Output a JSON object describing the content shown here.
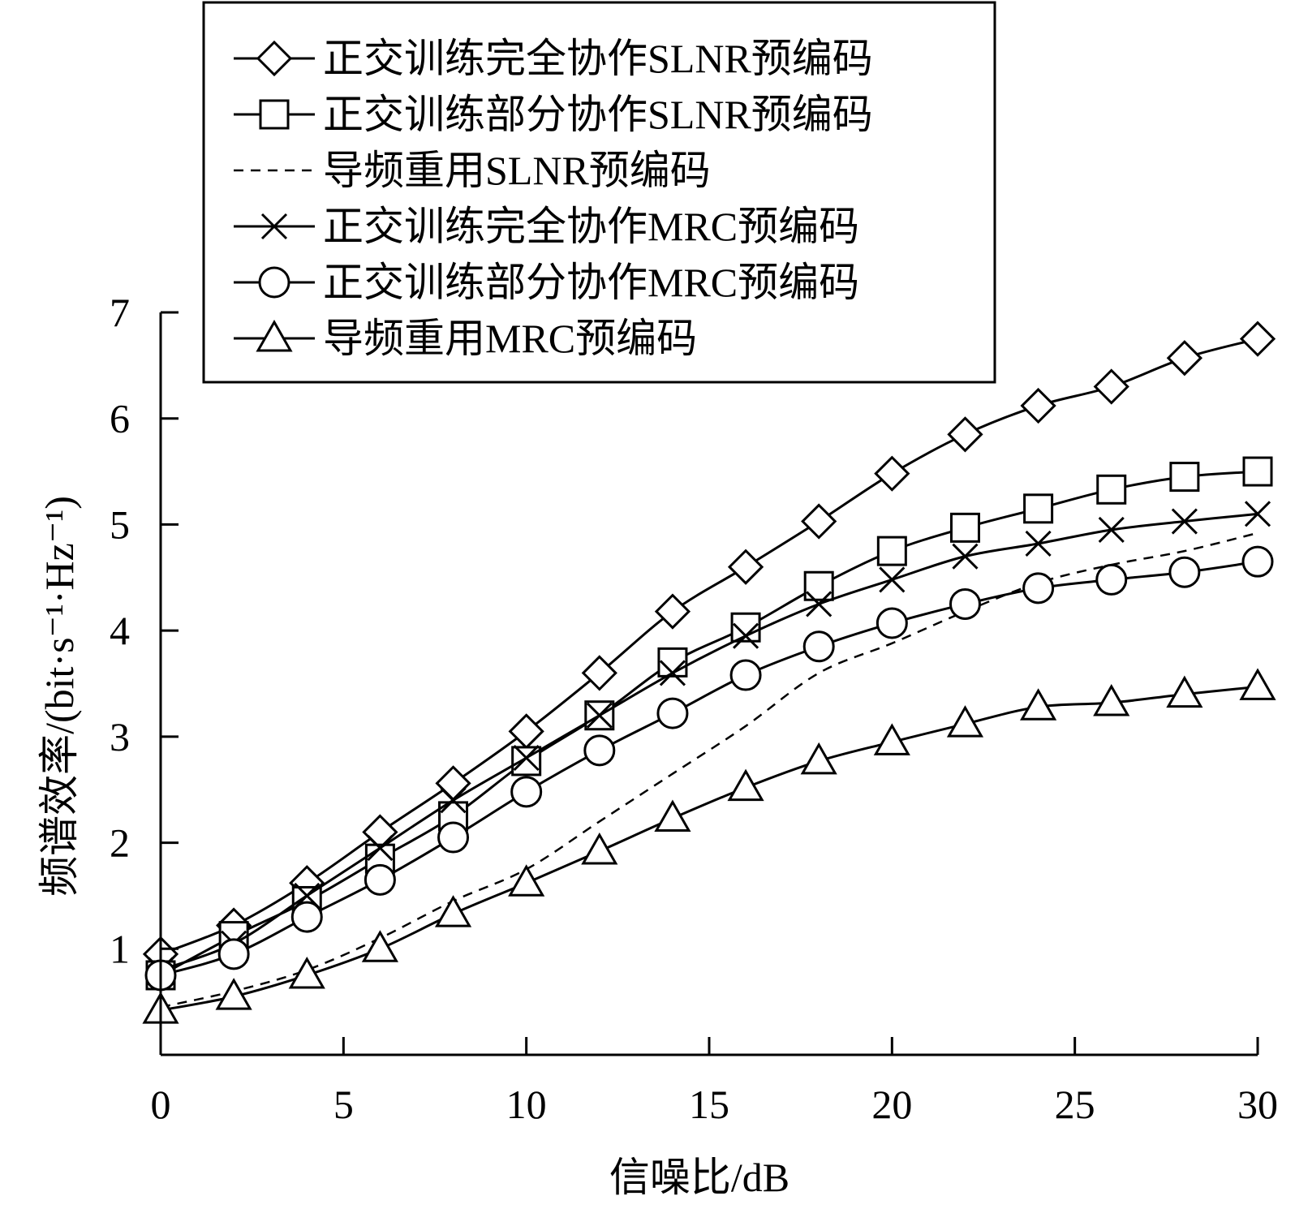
{
  "chart_data": {
    "type": "line",
    "title": "",
    "xlabel": "信噪比/dB",
    "ylabel": "频谱效率/(bit·s⁻¹·Hz⁻¹)",
    "xlim": [
      0,
      30
    ],
    "ylim": [
      0,
      7
    ],
    "xticks": [
      0,
      5,
      10,
      15,
      20,
      25,
      30
    ],
    "yticks": [
      1,
      2,
      3,
      4,
      5,
      6,
      7
    ],
    "xtick_labels": [
      "0",
      "5",
      "10",
      "15",
      "20",
      "25",
      "30"
    ],
    "ytick_labels": [
      "1",
      "2",
      "3",
      "4",
      "5",
      "6",
      "7"
    ],
    "grid": false,
    "legend_position": "top",
    "x": [
      0,
      2,
      4,
      6,
      8,
      10,
      12,
      14,
      16,
      18,
      20,
      22,
      24,
      26,
      28,
      30
    ],
    "series": [
      {
        "name": "正交训练完全协作SLNR预编码",
        "marker": "diamond",
        "dash": "solid",
        "values": [
          0.95,
          1.22,
          1.62,
          2.1,
          2.56,
          3.05,
          3.6,
          4.18,
          4.6,
          5.03,
          5.48,
          5.85,
          6.12,
          6.3,
          6.57,
          6.75
        ]
      },
      {
        "name": "正交训练部分协作SLNR预编码",
        "marker": "square",
        "dash": "solid",
        "values": [
          0.75,
          1.12,
          1.45,
          1.85,
          2.25,
          2.77,
          3.2,
          3.7,
          4.03,
          4.42,
          4.75,
          4.97,
          5.15,
          5.33,
          5.45,
          5.5
        ]
      },
      {
        "name": "导频重用SLNR预编码",
        "marker": "none",
        "dash": "dashed",
        "values": [
          0.45,
          0.6,
          0.8,
          1.1,
          1.45,
          1.75,
          2.2,
          2.65,
          3.1,
          3.6,
          3.88,
          4.18,
          4.45,
          4.62,
          4.75,
          4.92
        ]
      },
      {
        "name": "正交训练完全协作MRC预编码",
        "marker": "x",
        "dash": "solid",
        "values": [
          0.8,
          1.05,
          1.5,
          1.95,
          2.4,
          2.8,
          3.2,
          3.6,
          3.95,
          4.25,
          4.48,
          4.7,
          4.82,
          4.95,
          5.03,
          5.1
        ]
      },
      {
        "name": "正交训练部分协作MRC预编码",
        "marker": "circle",
        "dash": "solid",
        "values": [
          0.75,
          0.95,
          1.3,
          1.65,
          2.05,
          2.48,
          2.87,
          3.22,
          3.58,
          3.85,
          4.07,
          4.25,
          4.4,
          4.48,
          4.55,
          4.65
        ]
      },
      {
        "name": "导频重用MRC预编码",
        "marker": "triangle",
        "dash": "solid",
        "values": [
          0.42,
          0.55,
          0.75,
          1.0,
          1.33,
          1.62,
          1.92,
          2.23,
          2.52,
          2.77,
          2.95,
          3.12,
          3.28,
          3.32,
          3.4,
          3.47
        ]
      }
    ]
  }
}
